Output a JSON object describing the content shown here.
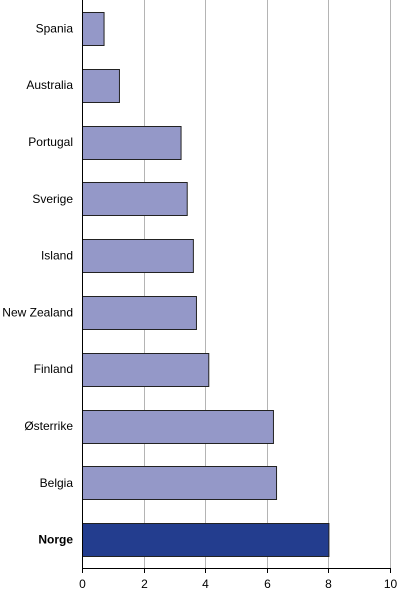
{
  "chart_data": {
    "type": "bar",
    "orientation": "horizontal",
    "categories": [
      "Spania",
      "Australia",
      "Portugal",
      "Sverige",
      "Island",
      "New Zealand",
      "Finland",
      "Østerrike",
      "Belgia",
      "Norge"
    ],
    "values": [
      0.7,
      1.2,
      3.2,
      3.4,
      3.6,
      3.7,
      4.1,
      6.2,
      6.3,
      8.0
    ],
    "highlight_category": "Norge",
    "xlim": [
      0,
      10
    ],
    "xticks": [
      0,
      2,
      4,
      6,
      8,
      10
    ],
    "grid": "vertical",
    "legend": "none",
    "colors": {
      "bar": "#9498c8",
      "highlight": "#233d8e",
      "bar_stroke": "#222222",
      "grid": "#b4b4b4",
      "axis": "#000000"
    }
  }
}
